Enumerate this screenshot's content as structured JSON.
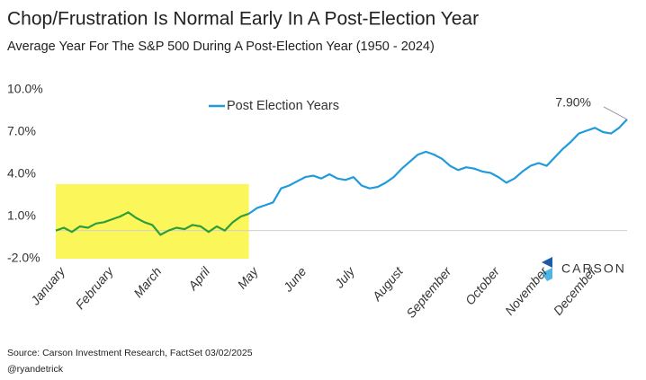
{
  "chart_data": {
    "type": "line",
    "title": "Chop/Frustration Is Normal Early In A Post-Election Year",
    "subtitle": "Average Year For The S&P 500 During A Post-Election Year (1950 - 2024)",
    "source": "Source: Carson Investment Research, FactSet 03/02/2025",
    "handle": "@ryandetrick",
    "logo_text": "CARSON",
    "categories": [
      "January",
      null,
      null,
      null,
      null,
      null,
      "February",
      null,
      null,
      null,
      null,
      null,
      "March",
      null,
      null,
      null,
      null,
      null,
      "April",
      null,
      null,
      null,
      null,
      null,
      "May",
      null,
      null,
      null,
      null,
      null,
      "June",
      null,
      null,
      null,
      null,
      null,
      "July",
      null,
      null,
      null,
      null,
      null,
      "August",
      null,
      null,
      null,
      null,
      null,
      "September",
      null,
      null,
      null,
      null,
      null,
      "October",
      null,
      null,
      null,
      null,
      null,
      "November",
      null,
      null,
      null,
      null,
      null,
      "December",
      null,
      null,
      null,
      null,
      null
    ],
    "ylim": [
      -2,
      10
    ],
    "yticks": [
      {
        "value": -2,
        "label": "-2.0%"
      },
      {
        "value": 1,
        "label": "1.0%"
      },
      {
        "value": 4,
        "label": "4.0%"
      },
      {
        "value": 7,
        "label": "7.0%"
      },
      {
        "value": 10,
        "label": "10.0%"
      }
    ],
    "highlight": {
      "color": "#fbf75a",
      "ylim": [
        -2,
        3.3
      ]
    },
    "series": [
      {
        "color": "#2e9e3a",
        "values": [
          0,
          0.2,
          -0.1,
          0.3,
          0.2,
          0.5,
          0.6,
          0.8,
          1.0,
          1.3,
          0.9,
          0.6,
          0.4,
          -0.3,
          0,
          0.2,
          0.1,
          0.4,
          0.3,
          -0.1,
          0.3,
          0,
          0.6,
          1.0,
          1.2,
          null,
          null,
          null,
          null,
          null,
          null,
          null,
          null,
          null,
          null,
          null,
          null,
          null,
          null,
          null,
          null,
          null,
          null,
          null,
          null,
          null,
          null,
          null,
          null,
          null,
          null,
          null,
          null,
          null,
          null,
          null,
          null,
          null,
          null,
          null,
          null,
          null,
          null,
          null,
          null,
          null,
          null,
          null,
          null,
          null,
          null,
          null
        ]
      },
      {
        "name": "Post Election Years",
        "color": "#1f9bdc",
        "values": [
          null,
          null,
          null,
          null,
          null,
          null,
          null,
          null,
          null,
          null,
          null,
          null,
          null,
          null,
          null,
          null,
          null,
          null,
          null,
          null,
          null,
          null,
          null,
          null,
          1.2,
          1.6,
          1.8,
          2.0,
          3.0,
          3.2,
          3.5,
          3.8,
          3.9,
          3.7,
          4.0,
          3.7,
          3.6,
          3.8,
          3.2,
          3.0,
          3.1,
          3.4,
          3.8,
          4.4,
          4.9,
          5.4,
          5.6,
          5.4,
          5.1,
          4.6,
          4.3,
          4.5,
          4.4,
          4.2,
          4.1,
          3.8,
          3.4,
          3.7,
          4.2,
          4.6,
          4.8,
          4.6,
          5.2,
          5.8,
          6.3,
          6.9,
          7.1,
          7.3,
          7.0,
          6.9,
          7.3,
          7.9
        ],
        "value_labels": [
          null,
          null,
          null,
          null,
          null,
          null,
          null,
          null,
          null,
          null,
          null,
          null,
          null,
          null,
          null,
          null,
          null,
          null,
          null,
          null,
          null,
          null,
          null,
          null,
          null,
          null,
          null,
          null,
          null,
          null,
          null,
          null,
          null,
          null,
          null,
          null,
          null,
          null,
          null,
          null,
          null,
          null,
          null,
          null,
          null,
          null,
          null,
          null,
          null,
          null,
          null,
          null,
          null,
          null,
          null,
          null,
          null,
          null,
          null,
          null,
          null,
          null,
          null,
          null,
          null,
          null,
          null,
          null,
          null,
          null,
          null,
          "7.90%"
        ]
      }
    ]
  }
}
